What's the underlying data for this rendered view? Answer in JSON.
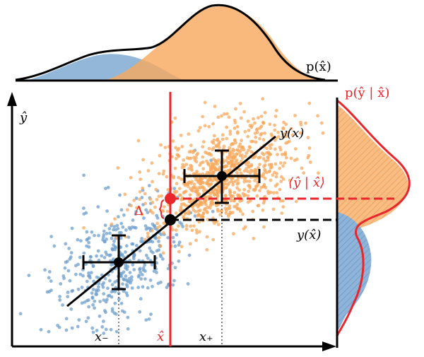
{
  "colors": {
    "blue_fill": "#6f9fcc",
    "orange_fill": "#f7a85c",
    "red": "#e8262b",
    "axis": "#000000"
  },
  "labels": {
    "p_xhat": "p(x̂)",
    "p_yhat_given_xhat": "p(ŷ | x̂)",
    "y_hat_axis": "ŷ",
    "y_of_x": "y(x)",
    "cond_mean": "⟨ŷ | x̂⟩",
    "y_of_xhat": "y(x̂)",
    "delta": "Δ",
    "x_minus": "x₋",
    "x_hat": "x̂",
    "x_plus": "x₊"
  }
}
